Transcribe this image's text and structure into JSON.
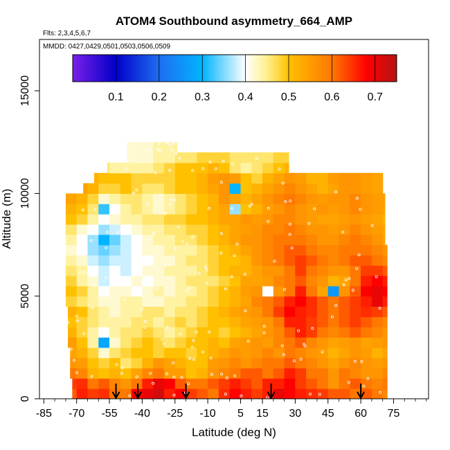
{
  "chart_data": {
    "type": "heatmap",
    "title": "ATOM4 Southbound asymmetry_664_AMP",
    "flights_note": "Flts: 2,3,4,5,6,7",
    "dates_note": "MMDD: 0427,0429,0501,0503,0506,0509",
    "xlabel": "Latitude (deg N)",
    "ylabel": "Altitude (m)",
    "xlim": [
      -87,
      91
    ],
    "ylim": [
      0,
      17500
    ],
    "x_ticks": [
      -85,
      -70,
      -55,
      -40,
      -25,
      -10,
      5,
      15,
      30,
      45,
      60,
      75
    ],
    "x_tick_labels": [
      "-85",
      "-70",
      "-55",
      "-40",
      "-25",
      "-10",
      "5",
      "15",
      "30",
      "45",
      "60",
      "75"
    ],
    "y_ticks": [
      0,
      5000,
      10000,
      15000
    ],
    "y_tick_labels": [
      "0",
      "5000",
      "10000",
      "15000"
    ],
    "colorbar": {
      "range": [
        0.0,
        0.75
      ],
      "ticks": [
        0.1,
        0.2,
        0.3,
        0.4,
        0.5,
        0.6,
        0.7
      ],
      "tick_labels": [
        "0.1",
        "0.2",
        "0.3",
        "0.4",
        "0.5",
        "0.6",
        "0.7"
      ],
      "dividers": [
        0.1,
        0.2,
        0.3,
        0.4,
        0.5,
        0.6,
        0.7
      ],
      "colors": [
        "#7a1fe8",
        "#0000c8",
        "#1e6ef0",
        "#00b4ff",
        "#ffffff",
        "#fff08c",
        "#ffc000",
        "#ff7800",
        "#ff0000",
        "#b41414"
      ]
    },
    "latitude_bins": [
      -72.5,
      -67.5,
      -62.5,
      -57.5,
      -52.5,
      -47.5,
      -42.5,
      -37.5,
      -32.5,
      -27.5,
      -22.5,
      -17.5,
      -12.5,
      -7.5,
      -2.5,
      2.5,
      7.5,
      12.5,
      17.5,
      22.5,
      27.5,
      32.5,
      37.5,
      42.5,
      47.5,
      52.5,
      57.5,
      62.5,
      67.5,
      72.5
    ],
    "altitude_bins": [
      250,
      750,
      1250,
      1750,
      2250,
      2750,
      3250,
      3750,
      4250,
      4750,
      5250,
      5750,
      6250,
      6750,
      7250,
      7750,
      8250,
      8750,
      9250,
      9750,
      10250,
      10750,
      11250,
      11750,
      12250
    ],
    "lat_extent_by_altitude": [
      [
        -72,
        72
      ],
      [
        -72,
        72
      ],
      [
        -73,
        72
      ],
      [
        -73,
        72
      ],
      [
        -73,
        72
      ],
      [
        -74,
        72
      ],
      [
        -74,
        72
      ],
      [
        -74,
        72
      ],
      [
        -74,
        72
      ],
      [
        -75,
        72
      ],
      [
        -75,
        72
      ],
      [
        -75,
        72
      ],
      [
        -76,
        72
      ],
      [
        -76,
        72
      ],
      [
        -76,
        72
      ],
      [
        -76,
        71
      ],
      [
        -76,
        71
      ],
      [
        -77,
        71
      ],
      [
        -77,
        71
      ],
      [
        -77,
        71
      ],
      [
        -67,
        70
      ],
      [
        -62,
        70
      ],
      [
        -56,
        27
      ],
      [
        -47,
        27
      ],
      [
        -47,
        -24
      ]
    ],
    "grid_rows_low_to_high": [
      [
        0.62,
        0.66,
        0.64,
        0.65,
        0.6,
        0.6,
        0.68,
        0.7,
        0.72,
        0.66,
        0.68,
        0.64,
        0.62,
        0.6,
        0.65,
        0.68,
        0.66,
        0.64,
        0.66,
        0.7,
        0.68,
        0.66,
        0.65,
        0.64,
        0.62,
        0.62,
        0.6,
        0.62,
        0.6,
        0.58
      ],
      [
        0.64,
        0.65,
        0.6,
        0.62,
        0.58,
        0.56,
        0.6,
        0.66,
        0.7,
        0.68,
        0.62,
        0.6,
        0.6,
        0.62,
        0.64,
        0.66,
        0.64,
        0.62,
        0.66,
        0.66,
        0.68,
        0.64,
        0.62,
        0.6,
        0.56,
        0.6,
        0.62,
        0.6,
        0.58,
        0.6
      ],
      [
        0.6,
        0.58,
        0.52,
        0.5,
        0.52,
        0.5,
        0.54,
        0.58,
        0.6,
        0.55,
        0.55,
        0.5,
        0.52,
        0.56,
        0.58,
        0.6,
        0.62,
        0.62,
        0.6,
        0.62,
        0.66,
        0.64,
        0.6,
        0.6,
        0.56,
        0.6,
        0.58,
        0.56,
        0.56,
        0.58
      ],
      [
        0.56,
        0.55,
        0.5,
        0.48,
        0.5,
        0.46,
        0.48,
        0.52,
        0.56,
        0.54,
        0.52,
        0.5,
        0.5,
        0.55,
        0.56,
        0.58,
        0.56,
        0.58,
        0.6,
        0.6,
        0.62,
        0.6,
        0.58,
        0.56,
        0.54,
        0.56,
        0.58,
        0.56,
        0.55,
        0.56
      ],
      [
        0.54,
        0.52,
        0.48,
        0.42,
        0.46,
        0.48,
        0.5,
        0.5,
        0.48,
        0.5,
        0.5,
        0.48,
        0.5,
        0.52,
        0.54,
        0.56,
        0.55,
        0.56,
        0.58,
        0.56,
        0.6,
        0.58,
        0.56,
        0.55,
        0.52,
        0.54,
        0.56,
        0.55,
        0.52,
        0.54
      ],
      [
        0.55,
        0.5,
        0.44,
        0.28,
        0.42,
        0.46,
        0.48,
        0.5,
        0.48,
        0.46,
        0.48,
        0.5,
        0.5,
        0.52,
        0.5,
        0.54,
        0.55,
        0.56,
        0.55,
        0.58,
        0.6,
        0.62,
        0.58,
        0.56,
        0.54,
        0.55,
        0.56,
        0.54,
        0.55,
        0.56
      ],
      [
        0.52,
        0.48,
        0.44,
        0.4,
        0.44,
        0.46,
        0.46,
        0.48,
        0.46,
        0.44,
        0.46,
        0.48,
        0.5,
        0.5,
        0.48,
        0.5,
        0.52,
        0.54,
        0.56,
        0.58,
        0.62,
        0.66,
        0.64,
        0.6,
        0.58,
        0.6,
        0.62,
        0.6,
        0.58,
        0.56
      ],
      [
        0.5,
        0.48,
        0.46,
        0.44,
        0.44,
        0.44,
        0.46,
        0.46,
        0.44,
        0.46,
        0.48,
        0.46,
        0.48,
        0.5,
        0.5,
        0.52,
        0.54,
        0.55,
        0.56,
        0.6,
        0.66,
        0.66,
        0.64,
        0.62,
        0.6,
        0.62,
        0.64,
        0.62,
        0.6,
        0.58
      ],
      [
        0.52,
        0.5,
        0.46,
        0.44,
        0.42,
        0.44,
        0.44,
        0.46,
        0.46,
        0.44,
        0.46,
        0.46,
        0.48,
        0.5,
        0.52,
        0.54,
        0.55,
        0.56,
        0.6,
        0.64,
        0.68,
        0.66,
        0.65,
        0.62,
        0.6,
        0.62,
        0.64,
        0.65,
        0.64,
        0.62
      ],
      [
        0.48,
        0.46,
        0.44,
        0.42,
        0.42,
        0.44,
        0.44,
        0.42,
        0.42,
        0.44,
        0.44,
        0.46,
        0.46,
        0.48,
        0.5,
        0.52,
        0.54,
        0.58,
        0.6,
        0.62,
        0.66,
        0.68,
        0.65,
        0.62,
        0.6,
        0.62,
        0.64,
        0.66,
        0.7,
        0.66
      ],
      [
        0.5,
        0.48,
        0.44,
        0.4,
        0.42,
        0.42,
        0.4,
        0.42,
        0.44,
        0.42,
        0.44,
        0.44,
        0.46,
        0.48,
        0.5,
        0.52,
        0.55,
        0.56,
        0.4,
        0.56,
        0.6,
        0.66,
        0.6,
        0.54,
        0.26,
        0.56,
        0.62,
        0.68,
        0.7,
        0.68
      ],
      [
        0.48,
        0.44,
        0.42,
        0.38,
        0.4,
        0.4,
        0.42,
        0.4,
        0.42,
        0.42,
        0.44,
        0.46,
        0.46,
        0.46,
        0.48,
        0.5,
        0.54,
        0.54,
        0.55,
        0.58,
        0.6,
        0.62,
        0.58,
        0.56,
        0.52,
        0.54,
        0.6,
        0.66,
        0.68,
        0.66
      ],
      [
        0.46,
        0.44,
        0.4,
        0.38,
        0.4,
        0.38,
        0.4,
        0.42,
        0.42,
        0.44,
        0.44,
        0.44,
        0.46,
        0.48,
        0.5,
        0.52,
        0.52,
        0.54,
        0.56,
        0.56,
        0.6,
        0.64,
        0.6,
        0.58,
        0.56,
        0.56,
        0.6,
        0.64,
        0.64,
        0.62
      ],
      [
        0.44,
        0.42,
        0.38,
        0.36,
        0.38,
        0.38,
        0.4,
        0.4,
        0.42,
        0.42,
        0.44,
        0.46,
        0.46,
        0.48,
        0.5,
        0.5,
        0.52,
        0.56,
        0.58,
        0.6,
        0.62,
        0.64,
        0.62,
        0.6,
        0.58,
        0.6,
        0.62,
        0.62,
        0.6,
        0.58
      ],
      [
        0.42,
        0.4,
        0.36,
        0.34,
        0.36,
        0.38,
        0.4,
        0.42,
        0.42,
        0.44,
        0.44,
        0.44,
        0.46,
        0.48,
        0.5,
        0.52,
        0.54,
        0.56,
        0.58,
        0.6,
        0.62,
        0.62,
        0.6,
        0.58,
        0.58,
        0.6,
        0.6,
        0.6,
        0.58,
        0.56
      ],
      [
        0.44,
        0.4,
        0.36,
        0.3,
        0.34,
        0.38,
        0.4,
        0.42,
        0.44,
        0.44,
        0.46,
        0.46,
        0.48,
        0.5,
        0.52,
        0.54,
        0.56,
        0.56,
        0.58,
        0.6,
        0.6,
        0.6,
        0.58,
        0.56,
        0.56,
        0.58,
        0.6,
        0.58,
        0.56,
        0.54
      ],
      [
        0.46,
        0.42,
        0.4,
        0.36,
        0.38,
        0.4,
        0.42,
        0.44,
        0.44,
        0.46,
        0.46,
        0.48,
        0.48,
        0.5,
        0.52,
        0.54,
        0.55,
        0.56,
        0.58,
        0.58,
        0.6,
        0.58,
        0.56,
        0.56,
        0.55,
        0.56,
        0.58,
        0.56,
        0.55,
        0.54
      ],
      [
        0.5,
        0.48,
        0.44,
        0.4,
        0.42,
        0.44,
        0.44,
        0.46,
        0.46,
        0.48,
        0.48,
        0.5,
        0.5,
        0.52,
        0.54,
        0.54,
        0.56,
        0.55,
        0.56,
        0.58,
        0.58,
        0.56,
        0.55,
        0.54,
        0.54,
        0.55,
        0.56,
        0.55,
        0.54,
        0.52
      ],
      [
        0.52,
        0.5,
        0.46,
        0.32,
        0.4,
        0.44,
        0.46,
        0.44,
        0.42,
        0.44,
        0.46,
        0.48,
        0.5,
        0.52,
        0.54,
        0.36,
        0.5,
        0.52,
        0.55,
        0.56,
        0.58,
        0.56,
        0.55,
        0.56,
        0.55,
        0.56,
        0.58,
        0.56,
        0.55,
        0.54
      ],
      [
        0.54,
        0.52,
        0.48,
        0.42,
        0.44,
        0.46,
        0.46,
        0.44,
        0.42,
        0.44,
        0.46,
        0.48,
        0.5,
        0.52,
        0.56,
        0.54,
        0.52,
        0.54,
        0.56,
        0.58,
        0.6,
        0.58,
        0.56,
        0.55,
        0.56,
        0.56,
        0.58,
        0.56,
        0.55,
        0.55
      ],
      [
        0.55,
        0.54,
        0.52,
        0.48,
        0.48,
        0.5,
        0.48,
        0.46,
        0.46,
        0.48,
        0.5,
        0.5,
        0.52,
        0.54,
        0.56,
        0.3,
        0.5,
        0.52,
        0.54,
        0.56,
        0.58,
        0.56,
        0.54,
        0.52,
        0.54,
        0.56,
        0.56,
        0.55,
        0.54,
        0.54
      ],
      [
        0.55,
        0.55,
        0.52,
        0.5,
        0.5,
        0.5,
        0.48,
        0.48,
        0.48,
        0.48,
        0.5,
        0.5,
        0.52,
        0.55,
        0.56,
        0.55,
        0.5,
        0.48,
        0.52,
        0.54,
        0.56,
        0.55,
        0.52,
        0.52,
        0.55,
        0.56,
        0.56,
        0.55,
        0.54,
        0.54
      ],
      [
        0.5,
        0.5,
        0.48,
        0.46,
        0.44,
        0.44,
        0.44,
        0.44,
        0.46,
        0.48,
        0.5,
        0.5,
        0.5,
        0.52,
        0.5,
        0.46,
        0.44,
        0.46,
        0.48,
        0.5,
        0.52,
        0.5,
        0.48,
        0.48,
        0.5,
        0.5,
        0.5,
        0.5,
        0.5,
        0.5
      ],
      [
        0.46,
        0.46,
        0.46,
        0.44,
        0.44,
        0.42,
        0.42,
        0.42,
        0.44,
        0.44,
        0.46,
        0.46,
        0.48,
        0.48,
        0.48,
        0.46,
        0.46,
        0.46,
        0.46,
        0.48,
        0.48,
        0.46,
        0.46,
        0.46,
        0.46,
        0.46,
        0.46,
        0.46,
        0.46,
        0.46
      ],
      [
        0.44,
        0.44,
        0.44,
        0.44,
        0.44,
        0.42,
        0.42,
        0.42,
        0.44,
        0.44,
        0.44,
        0.44,
        0.44,
        0.44,
        0.44,
        0.44,
        0.44,
        0.44,
        0.44,
        0.44,
        0.44,
        0.44,
        0.44,
        0.44,
        0.44,
        0.44,
        0.44,
        0.44,
        0.44,
        0.44
      ]
    ],
    "arrow_latitudes": [
      -52,
      -42,
      -20,
      19,
      60
    ]
  }
}
